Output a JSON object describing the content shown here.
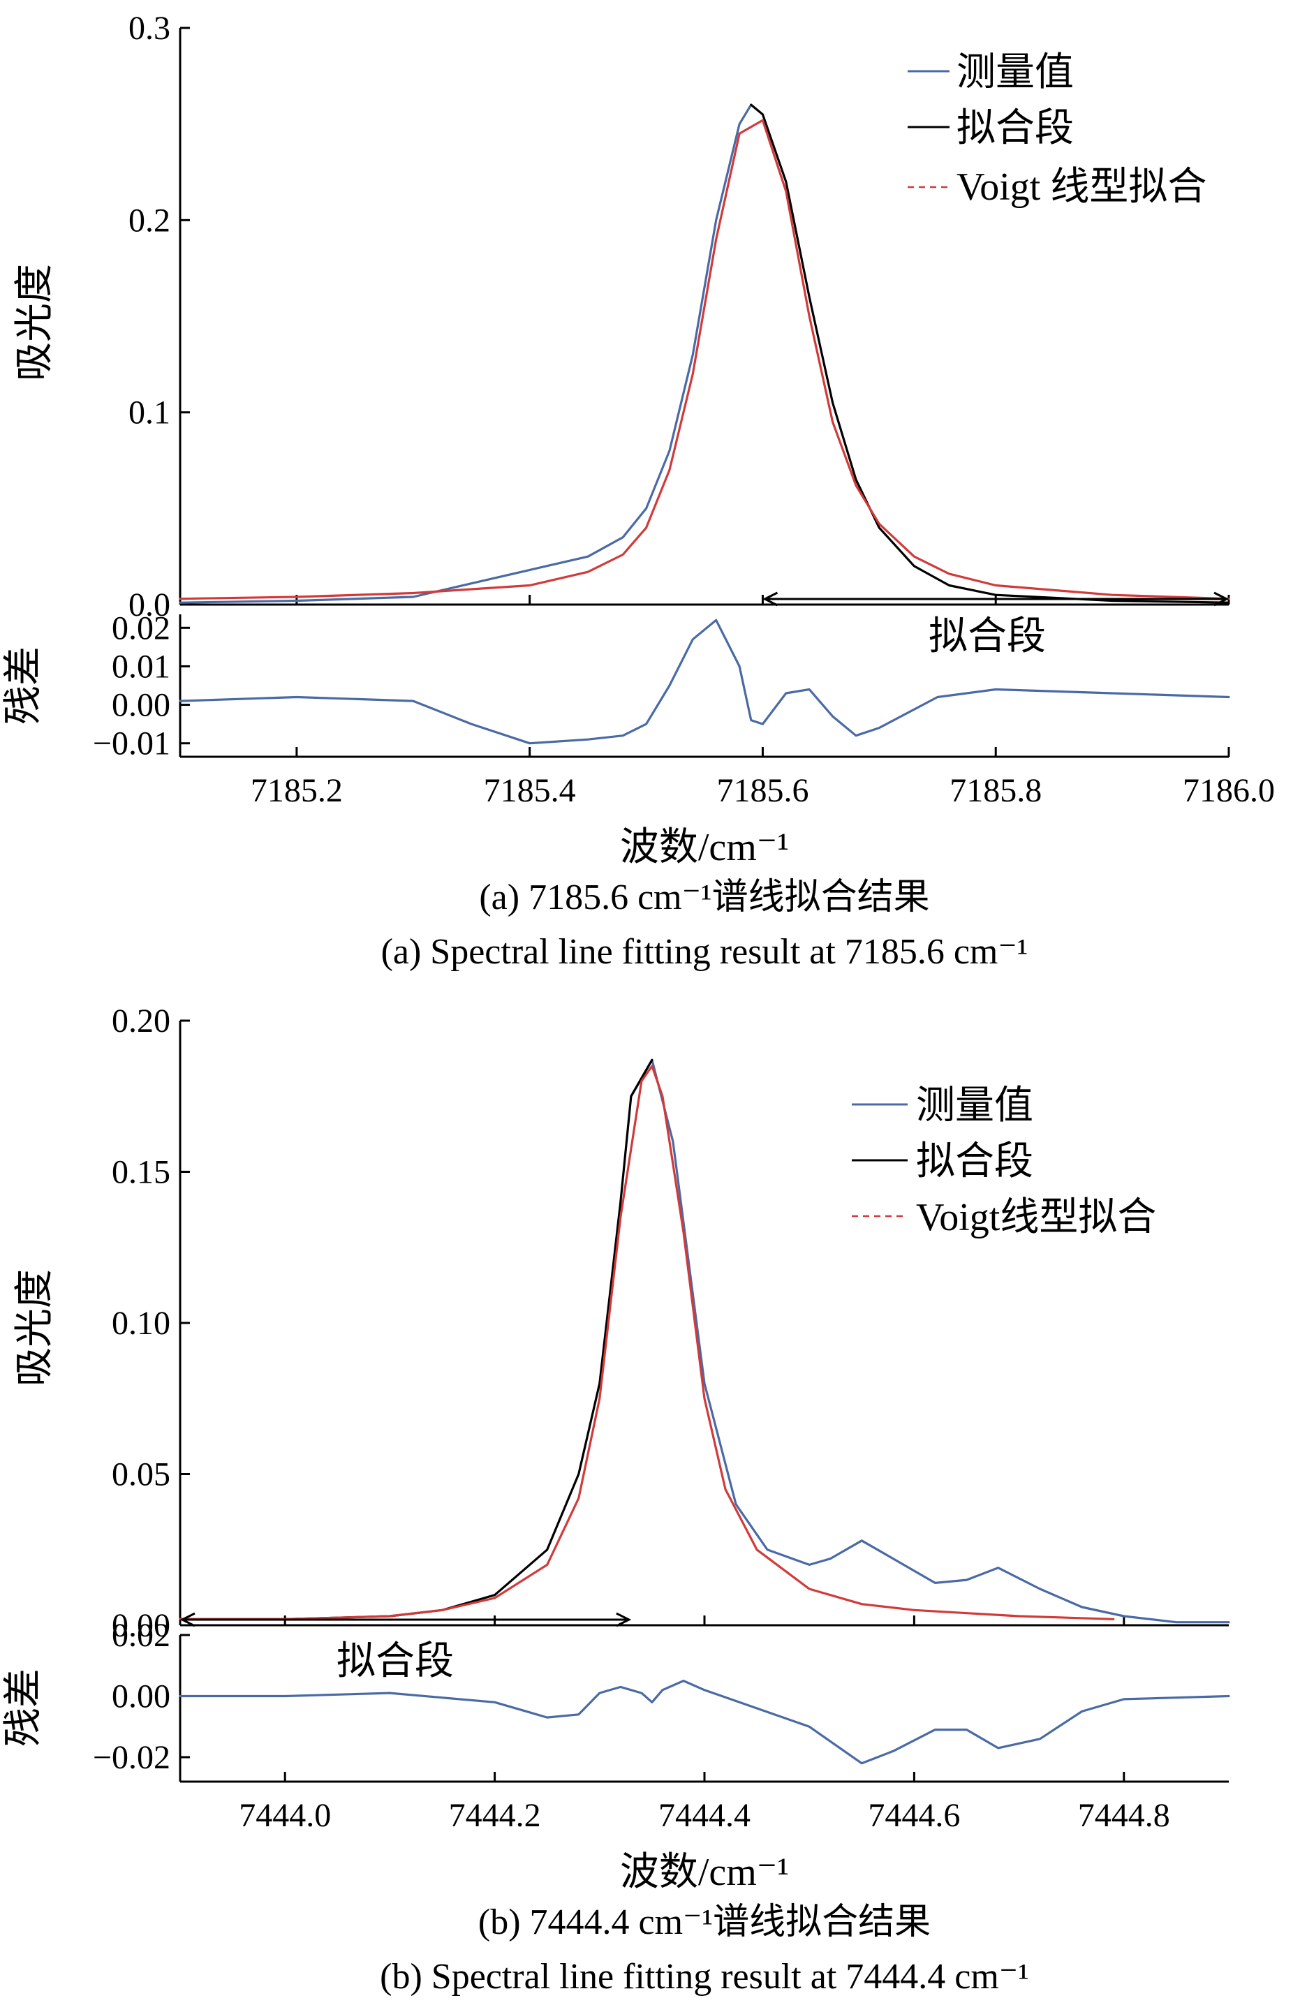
{
  "figure": {
    "panel_a": {
      "caption_cn": "(a) 7185.6 cm⁻¹谱线拟合结果",
      "caption_en": "(a) Spectral line fitting result at 7185.6 cm⁻¹"
    },
    "panel_b": {
      "caption_cn": "(b) 7444.4 cm⁻¹谱线拟合结果",
      "caption_en": "(b) Spectral line fitting result at 7444.4 cm⁻¹"
    }
  },
  "chart_data": [
    {
      "type": "line",
      "panel": "a-main",
      "ylabel": "吸光度",
      "xlim": [
        7185.1,
        7186.0
      ],
      "ylim": [
        0,
        0.3
      ],
      "yticks": [
        "0.0",
        "0.1",
        "0.2",
        "0.3"
      ],
      "ytick_values": [
        0.0,
        0.1,
        0.2,
        0.3
      ],
      "legend": {
        "placement": "top-right",
        "entries": [
          "测量值",
          "拟合段",
          "Voigt 线型拟合"
        ]
      },
      "annotation": {
        "label": "拟合段",
        "from": 7185.6,
        "to": 7186.0,
        "style": "double-arrow"
      },
      "series": [
        {
          "name": "测量值",
          "color": "#4a6aa5",
          "style": "solid",
          "x": [
            7185.1,
            7185.2,
            7185.3,
            7185.35,
            7185.4,
            7185.45,
            7185.48,
            7185.5,
            7185.52,
            7185.54,
            7185.56,
            7185.58,
            7185.59
          ],
          "y": [
            0.001,
            0.002,
            0.004,
            0.011,
            0.018,
            0.025,
            0.035,
            0.05,
            0.08,
            0.13,
            0.2,
            0.25,
            0.26
          ]
        },
        {
          "name": "拟合段",
          "color": "#000000",
          "style": "solid",
          "x": [
            7185.59,
            7185.6,
            7185.62,
            7185.64,
            7185.66,
            7185.68,
            7185.7,
            7185.73,
            7185.76,
            7185.8,
            7185.9,
            7186.0
          ],
          "y": [
            0.26,
            0.255,
            0.22,
            0.16,
            0.105,
            0.065,
            0.04,
            0.02,
            0.01,
            0.005,
            0.002,
            0.001
          ]
        },
        {
          "name": "Voigt 线型拟合",
          "color": "#d23a3a",
          "style": "solid",
          "x": [
            7185.1,
            7185.2,
            7185.3,
            7185.4,
            7185.45,
            7185.48,
            7185.5,
            7185.52,
            7185.54,
            7185.56,
            7185.58,
            7185.6,
            7185.62,
            7185.64,
            7185.66,
            7185.68,
            7185.7,
            7185.73,
            7185.76,
            7185.8,
            7185.9,
            7186.0
          ],
          "y": [
            0.003,
            0.004,
            0.006,
            0.01,
            0.017,
            0.026,
            0.04,
            0.07,
            0.12,
            0.19,
            0.245,
            0.252,
            0.215,
            0.15,
            0.095,
            0.062,
            0.042,
            0.025,
            0.016,
            0.01,
            0.005,
            0.003
          ]
        }
      ]
    },
    {
      "type": "line",
      "panel": "a-residual",
      "ylabel": "残差",
      "xlabel": "波数/cm⁻¹",
      "xlim": [
        7185.1,
        7186.0
      ],
      "ylim": [
        -0.0135,
        0.0235
      ],
      "xticks": [
        "7185.2",
        "7185.4",
        "7185.6",
        "7185.8",
        "7186.0"
      ],
      "xtick_values": [
        7185.2,
        7185.4,
        7185.6,
        7185.8,
        7186.0
      ],
      "yticks": [
        "−0.01",
        "0.00",
        "0.01",
        "0.02"
      ],
      "ytick_values": [
        -0.01,
        0.0,
        0.01,
        0.02
      ],
      "series": [
        {
          "color": "#4a6aa5",
          "style": "solid",
          "x": [
            7185.1,
            7185.2,
            7185.3,
            7185.35,
            7185.4,
            7185.45,
            7185.48,
            7185.5,
            7185.52,
            7185.54,
            7185.56,
            7185.58,
            7185.59,
            7185.6,
            7185.62,
            7185.64,
            7185.66,
            7185.68,
            7185.7,
            7185.75,
            7185.8,
            7185.9,
            7186.0
          ],
          "y": [
            0.001,
            0.002,
            0.001,
            -0.005,
            -0.01,
            -0.009,
            -0.008,
            -0.005,
            0.005,
            0.017,
            0.022,
            0.01,
            -0.004,
            -0.005,
            0.003,
            0.004,
            -0.003,
            -0.008,
            -0.006,
            0.002,
            0.004,
            0.003,
            0.002
          ]
        }
      ]
    },
    {
      "type": "line",
      "panel": "b-main",
      "ylabel": "吸光度",
      "xlim": [
        7443.9,
        7444.9
      ],
      "ylim": [
        0,
        0.2
      ],
      "yticks": [
        "0.00",
        "0.05",
        "0.10",
        "0.15",
        "0.20"
      ],
      "ytick_values": [
        0.0,
        0.05,
        0.1,
        0.15,
        0.2
      ],
      "legend": {
        "placement": "top-right",
        "entries": [
          "测量值",
          "拟合段",
          "Voigt线型拟合"
        ]
      },
      "annotation": {
        "label": "拟合段",
        "from": 7443.9,
        "to": 7444.33,
        "style": "double-arrow"
      },
      "series": [
        {
          "name": "测量值",
          "color": "#4a6aa5",
          "style": "solid",
          "x": [
            7444.33,
            7444.35,
            7444.37,
            7444.4,
            7444.43,
            7444.46,
            7444.5,
            7444.52,
            7444.55,
            7444.58,
            7444.62,
            7444.65,
            7444.68,
            7444.72,
            7444.76,
            7444.8,
            7444.85,
            7444.9
          ],
          "y": [
            0.175,
            0.187,
            0.16,
            0.08,
            0.04,
            0.025,
            0.02,
            0.022,
            0.028,
            0.022,
            0.014,
            0.015,
            0.019,
            0.012,
            0.006,
            0.003,
            0.001,
            0.001
          ]
        },
        {
          "name": "拟合段",
          "color": "#000000",
          "style": "solid",
          "x": [
            7443.9,
            7444.0,
            7444.1,
            7444.15,
            7444.2,
            7444.25,
            7444.28,
            7444.3,
            7444.32,
            7444.33,
            7444.35
          ],
          "y": [
            0.002,
            0.002,
            0.003,
            0.005,
            0.01,
            0.025,
            0.05,
            0.08,
            0.14,
            0.175,
            0.187
          ]
        },
        {
          "name": "Voigt线型拟合",
          "color": "#d23a3a",
          "style": "solid",
          "x": [
            7443.9,
            7444.0,
            7444.1,
            7444.15,
            7444.2,
            7444.25,
            7444.28,
            7444.3,
            7444.32,
            7444.34,
            7444.35,
            7444.36,
            7444.38,
            7444.4,
            7444.42,
            7444.45,
            7444.5,
            7444.55,
            7444.6,
            7444.7,
            7444.79
          ],
          "y": [
            0.002,
            0.002,
            0.003,
            0.005,
            0.009,
            0.02,
            0.042,
            0.075,
            0.135,
            0.18,
            0.185,
            0.175,
            0.13,
            0.075,
            0.045,
            0.025,
            0.012,
            0.007,
            0.005,
            0.003,
            0.002
          ]
        }
      ]
    },
    {
      "type": "line",
      "panel": "b-residual",
      "ylabel": "残差",
      "xlabel": "波数/cm⁻¹",
      "xlim": [
        7443.9,
        7444.9
      ],
      "ylim": [
        -0.028,
        0.02
      ],
      "xticks": [
        "7444.0",
        "7444.2",
        "7444.4",
        "7444.6",
        "7444.8"
      ],
      "xtick_values": [
        7444.0,
        7444.2,
        7444.4,
        7444.6,
        7444.8
      ],
      "yticks": [
        "−0.02",
        "0.00",
        "0.02"
      ],
      "ytick_values": [
        -0.02,
        0.0,
        0.02
      ],
      "series": [
        {
          "color": "#4a6aa5",
          "style": "solid",
          "x": [
            7443.9,
            7444.0,
            7444.1,
            7444.2,
            7444.25,
            7444.28,
            7444.3,
            7444.32,
            7444.34,
            7444.35,
            7444.36,
            7444.38,
            7444.4,
            7444.45,
            7444.5,
            7444.55,
            7444.58,
            7444.62,
            7444.65,
            7444.68,
            7444.72,
            7444.76,
            7444.8,
            7444.9
          ],
          "y": [
            0.0,
            0.0,
            0.001,
            -0.002,
            -0.007,
            -0.006,
            0.001,
            0.003,
            0.001,
            -0.002,
            0.002,
            0.005,
            0.002,
            -0.004,
            -0.01,
            -0.022,
            -0.018,
            -0.011,
            -0.011,
            -0.017,
            -0.014,
            -0.005,
            -0.001,
            0.0
          ]
        }
      ]
    }
  ]
}
